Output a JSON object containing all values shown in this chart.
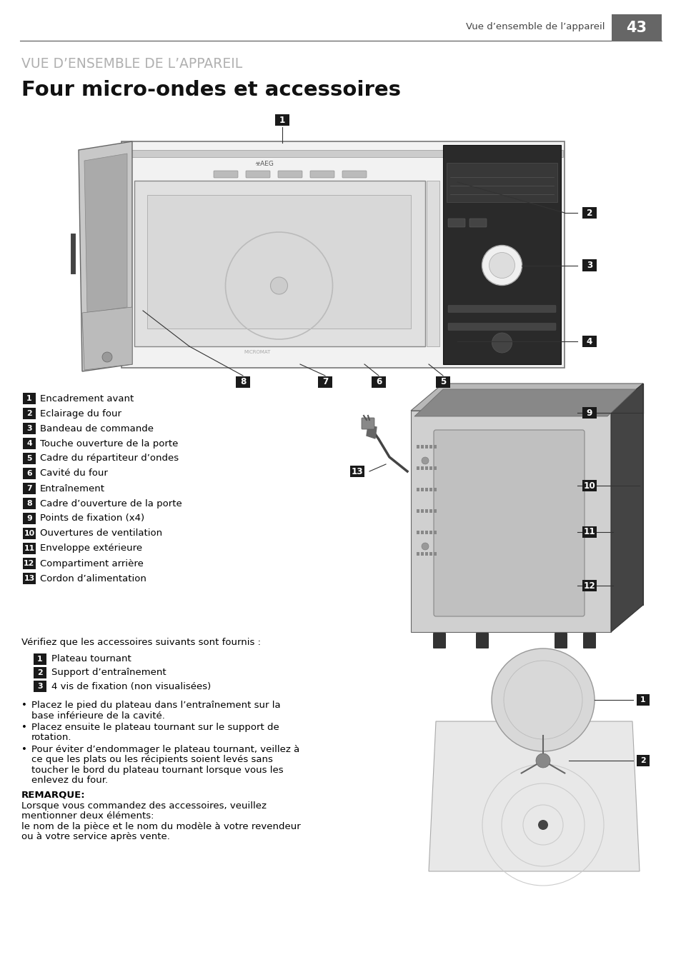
{
  "page_number": "43",
  "header_text": "Vue d’ensemble de l’appareil",
  "section_title": "VUE D’ENSEMBLE DE L’APPAREIL",
  "main_title": "Four micro-ondes et accessoires",
  "bg_color": "#ffffff",
  "text_color": "#000000",
  "badge_color": "#1a1a1a",
  "badge_text_color": "#ffffff",
  "items_main": [
    [
      "1",
      "Encadrement avant"
    ],
    [
      "2",
      "Eclairage du four"
    ],
    [
      "3",
      "Bandeau de commande"
    ],
    [
      "4",
      "Touche ouverture de la porte"
    ],
    [
      "5",
      "Cadre du répartiteur d’ondes"
    ],
    [
      "6",
      "Cavité du four"
    ],
    [
      "7",
      "Entraînement"
    ],
    [
      "8",
      "Cadre d’ouverture de la porte"
    ],
    [
      "9",
      "Points de fixation (x4)"
    ],
    [
      "10",
      "Ouvertures de ventilation"
    ],
    [
      "11",
      "Enveloppe extérieure"
    ],
    [
      "12",
      "Compartiment arrière"
    ],
    [
      "13",
      "Cordon d’alimentation"
    ]
  ],
  "accessories_intro": "Vérifiez que les accessoires suivants sont fournis :",
  "items_acc": [
    [
      "1",
      "Plateau tournant"
    ],
    [
      "2",
      "Support d’entraînement"
    ],
    [
      "3",
      "4 vis de fixation (non visualisées)"
    ]
  ],
  "bullet_points": [
    [
      "Placez le pied du plateau dans l’entraînement sur la",
      "base inférieure de la cavité."
    ],
    [
      "Placez ensuite le plateau tournant sur le support de",
      "rotation."
    ],
    [
      "Pour éviter d’endommager le plateau tournant, veillez à",
      "ce que les plats ou les récipients soient levés sans",
      "toucher le bord du plateau tournant lorsque vous les",
      "enlevez du four."
    ]
  ],
  "remarque_title": "REMARQUE:",
  "remarque_lines": [
    "Lorsque vous commandez des accessoires, veuillez",
    "mentionner deux éléments:",
    "le nom de la pièce et le nom du modèle à votre revendeur",
    "ou à votre service après vente."
  ]
}
